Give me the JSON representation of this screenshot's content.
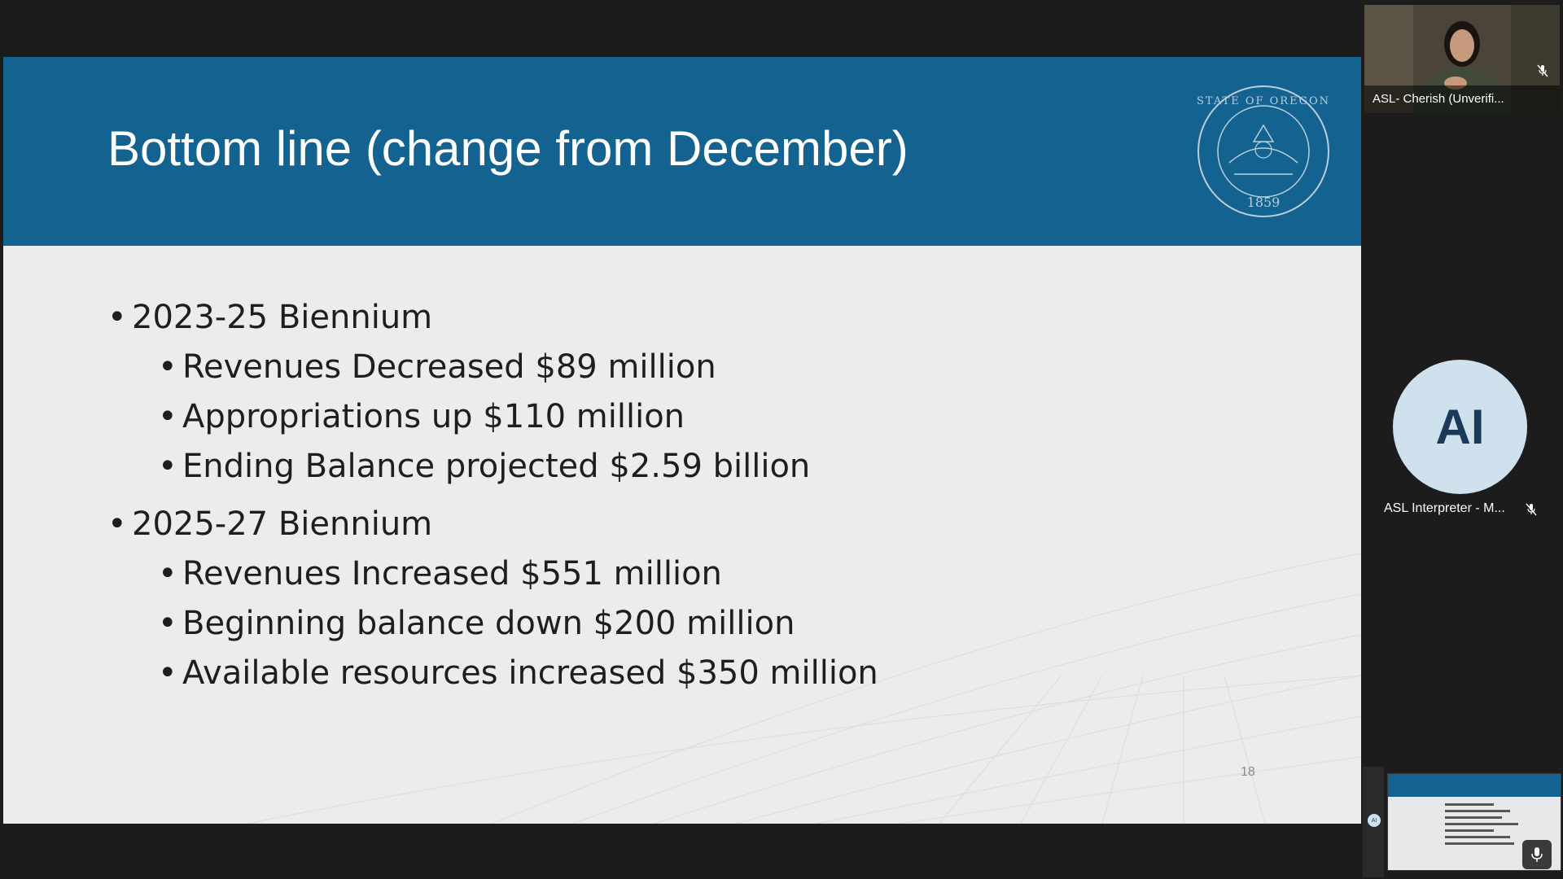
{
  "slide": {
    "title": "Bottom line (change from December)",
    "seal_text_top": "STATE OF OREGON",
    "seal_year": "1859",
    "groups": [
      {
        "heading": "2023-25 Biennium",
        "items": [
          "Revenues Decreased $89 million",
          "Appropriations up $110 million",
          "Ending Balance projected $2.59 billion"
        ]
      },
      {
        "heading": "2025-27 Biennium",
        "items": [
          "Revenues Increased $551 million",
          "Beginning balance down $200 million",
          "Available resources increased $350 million"
        ]
      }
    ],
    "page_number": "18"
  },
  "participants": {
    "video": {
      "name": "ASL- Cherish (Unverifi...",
      "muted": true
    },
    "avatar": {
      "initials": "AI",
      "name": "ASL Interpreter - M...",
      "muted": true
    }
  },
  "colors": {
    "header": "#13628f",
    "slide_bg": "#ebecec",
    "app_bg": "#1c1c1c",
    "avatar_bg": "#d0e1ee"
  }
}
